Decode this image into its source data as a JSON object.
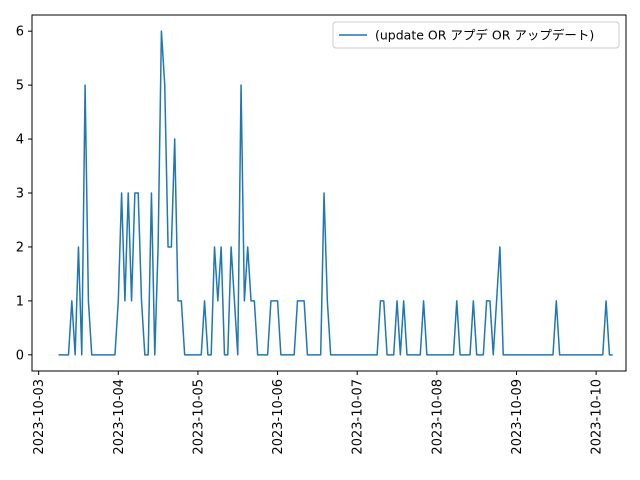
{
  "chart_data": {
    "type": "line",
    "title": "",
    "xlabel": "",
    "ylabel": "",
    "x_unit": "datetime",
    "xlim": [
      "2023-10-02T22:00",
      "2023-10-10T09:00"
    ],
    "ylim": [
      -0.3,
      6.3
    ],
    "grid": false,
    "legend_position": "top-right",
    "x_ticks": [
      "2023-10-03",
      "2023-10-04",
      "2023-10-05",
      "2023-10-06",
      "2023-10-07",
      "2023-10-08",
      "2023-10-09",
      "2023-10-10"
    ],
    "y_ticks": [
      "0",
      "1",
      "2",
      "3",
      "4",
      "5",
      "6"
    ],
    "series": [
      {
        "name": "(update OR アプデ OR アップデート)",
        "color": "#1f77b4",
        "x": [
          "2023-10-03T06:00",
          "2023-10-03T07:00",
          "2023-10-03T08:00",
          "2023-10-03T09:00",
          "2023-10-03T10:00",
          "2023-10-03T11:00",
          "2023-10-03T12:00",
          "2023-10-03T13:00",
          "2023-10-03T14:00",
          "2023-10-03T15:00",
          "2023-10-03T16:00",
          "2023-10-03T17:00",
          "2023-10-03T18:00",
          "2023-10-03T19:00",
          "2023-10-03T20:00",
          "2023-10-03T21:00",
          "2023-10-03T22:00",
          "2023-10-03T23:00",
          "2023-10-04T00:00",
          "2023-10-04T01:00",
          "2023-10-04T02:00",
          "2023-10-04T03:00",
          "2023-10-04T04:00",
          "2023-10-04T05:00",
          "2023-10-04T06:00",
          "2023-10-04T07:00",
          "2023-10-04T08:00",
          "2023-10-04T09:00",
          "2023-10-04T10:00",
          "2023-10-04T11:00",
          "2023-10-04T12:00",
          "2023-10-04T13:00",
          "2023-10-04T14:00",
          "2023-10-04T15:00",
          "2023-10-04T16:00",
          "2023-10-04T17:00",
          "2023-10-04T18:00",
          "2023-10-04T19:00",
          "2023-10-04T20:00",
          "2023-10-04T21:00",
          "2023-10-04T22:00",
          "2023-10-04T23:00",
          "2023-10-05T00:00",
          "2023-10-05T01:00",
          "2023-10-05T02:00",
          "2023-10-05T03:00",
          "2023-10-05T04:00",
          "2023-10-05T05:00",
          "2023-10-05T06:00",
          "2023-10-05T07:00",
          "2023-10-05T08:00",
          "2023-10-05T09:00",
          "2023-10-05T10:00",
          "2023-10-05T11:00",
          "2023-10-05T12:00",
          "2023-10-05T13:00",
          "2023-10-05T14:00",
          "2023-10-05T15:00",
          "2023-10-05T16:00",
          "2023-10-05T17:00",
          "2023-10-05T18:00",
          "2023-10-05T19:00",
          "2023-10-05T20:00",
          "2023-10-05T21:00",
          "2023-10-05T22:00",
          "2023-10-05T23:00",
          "2023-10-06T00:00",
          "2023-10-06T01:00",
          "2023-10-06T02:00",
          "2023-10-06T03:00",
          "2023-10-06T04:00",
          "2023-10-06T05:00",
          "2023-10-06T06:00",
          "2023-10-06T07:00",
          "2023-10-06T08:00",
          "2023-10-06T09:00",
          "2023-10-06T10:00",
          "2023-10-06T11:00",
          "2023-10-06T12:00",
          "2023-10-06T13:00",
          "2023-10-06T14:00",
          "2023-10-06T15:00",
          "2023-10-06T16:00",
          "2023-10-06T17:00",
          "2023-10-06T18:00",
          "2023-10-06T19:00",
          "2023-10-06T20:00",
          "2023-10-06T21:00",
          "2023-10-06T22:00",
          "2023-10-06T23:00",
          "2023-10-07T00:00",
          "2023-10-07T01:00",
          "2023-10-07T02:00",
          "2023-10-07T03:00",
          "2023-10-07T04:00",
          "2023-10-07T05:00",
          "2023-10-07T06:00",
          "2023-10-07T07:00",
          "2023-10-07T08:00",
          "2023-10-07T09:00",
          "2023-10-07T10:00",
          "2023-10-07T11:00",
          "2023-10-07T12:00",
          "2023-10-07T13:00",
          "2023-10-07T14:00",
          "2023-10-07T15:00",
          "2023-10-07T16:00",
          "2023-10-07T17:00",
          "2023-10-07T18:00",
          "2023-10-07T19:00",
          "2023-10-07T20:00",
          "2023-10-07T21:00",
          "2023-10-07T22:00",
          "2023-10-07T23:00",
          "2023-10-08T00:00",
          "2023-10-08T01:00",
          "2023-10-08T02:00",
          "2023-10-08T03:00",
          "2023-10-08T04:00",
          "2023-10-08T05:00",
          "2023-10-08T06:00",
          "2023-10-08T07:00",
          "2023-10-08T08:00",
          "2023-10-08T09:00",
          "2023-10-08T10:00",
          "2023-10-08T11:00",
          "2023-10-08T12:00",
          "2023-10-08T13:00",
          "2023-10-08T14:00",
          "2023-10-08T15:00",
          "2023-10-08T16:00",
          "2023-10-08T17:00",
          "2023-10-08T18:00",
          "2023-10-08T19:00",
          "2023-10-08T20:00",
          "2023-10-08T21:00",
          "2023-10-08T22:00",
          "2023-10-08T23:00",
          "2023-10-09T00:00",
          "2023-10-09T01:00",
          "2023-10-09T02:00",
          "2023-10-09T03:00",
          "2023-10-09T04:00",
          "2023-10-09T05:00",
          "2023-10-09T06:00",
          "2023-10-09T07:00",
          "2023-10-09T08:00",
          "2023-10-09T09:00",
          "2023-10-09T10:00",
          "2023-10-09T11:00",
          "2023-10-09T12:00",
          "2023-10-09T13:00",
          "2023-10-09T14:00",
          "2023-10-09T15:00",
          "2023-10-09T16:00",
          "2023-10-09T17:00",
          "2023-10-09T18:00",
          "2023-10-09T19:00",
          "2023-10-09T20:00",
          "2023-10-09T21:00",
          "2023-10-09T22:00",
          "2023-10-09T23:00",
          "2023-10-10T00:00",
          "2023-10-10T01:00",
          "2023-10-10T02:00",
          "2023-10-10T03:00",
          "2023-10-10T04:00",
          "2023-10-10T05:00"
        ],
        "values": [
          0,
          0,
          0,
          0,
          1,
          0,
          2,
          0,
          5,
          1,
          0,
          0,
          0,
          0,
          0,
          0,
          0,
          0,
          1,
          3,
          1,
          3,
          1,
          3,
          3,
          1,
          0,
          0,
          3,
          0,
          2,
          6,
          5,
          2,
          2,
          4,
          1,
          1,
          0,
          0,
          0,
          0,
          0,
          0,
          1,
          0,
          0,
          2,
          1,
          2,
          0,
          0,
          2,
          1,
          0,
          5,
          1,
          2,
          1,
          1,
          0,
          0,
          0,
          0,
          1,
          1,
          1,
          0,
          0,
          0,
          0,
          0,
          1,
          1,
          1,
          0,
          0,
          0,
          0,
          0,
          3,
          1,
          0,
          0,
          0,
          0,
          0,
          0,
          0,
          0,
          0,
          0,
          0,
          0,
          0,
          0,
          0,
          1,
          1,
          0,
          0,
          0,
          1,
          0,
          1,
          0,
          0,
          0,
          0,
          0,
          1,
          0,
          0,
          0,
          0,
          0,
          0,
          0,
          0,
          0,
          1,
          0,
          0,
          0,
          0,
          1,
          0,
          0,
          0,
          1,
          1,
          0,
          1,
          2,
          0,
          0,
          0,
          0,
          0,
          0,
          0,
          0,
          0,
          0,
          0,
          0,
          0,
          0,
          0,
          0,
          1,
          0,
          0,
          0,
          0,
          0,
          0,
          0,
          0,
          0,
          0,
          0,
          0,
          0,
          0,
          1,
          0,
          0
        ]
      }
    ]
  }
}
